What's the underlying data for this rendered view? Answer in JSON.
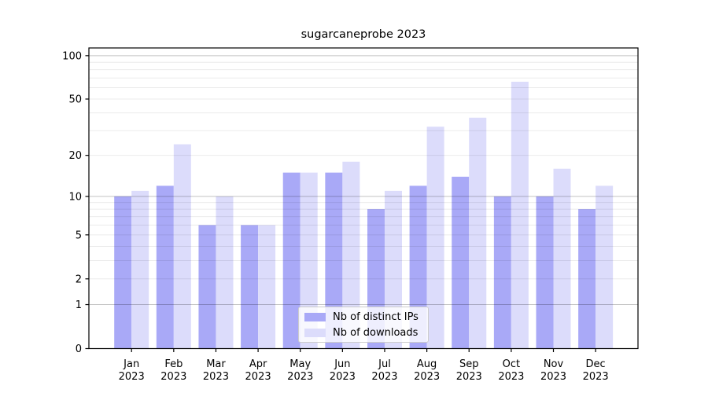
{
  "title": "sugarcaneprobe 2023",
  "colors": {
    "ips": "#a9a9f7",
    "downloads": "#dcdcfb",
    "grid_minor": "rgba(0,0,0,0.08)",
    "grid_major": "rgba(0,0,0,0.24)",
    "spine": "#000000",
    "legend_border": "#cccccc",
    "text": "#000000"
  },
  "legend": {
    "items": [
      {
        "label": "Nb of distinct IPs",
        "series": "ips"
      },
      {
        "label": "Nb of downloads",
        "series": "downloads"
      }
    ]
  },
  "chart_data": {
    "type": "bar",
    "title": "sugarcaneprobe 2023",
    "categories": [
      "Jan 2023",
      "Feb 2023",
      "Mar 2023",
      "Apr 2023",
      "May 2023",
      "Jun 2023",
      "Jul 2023",
      "Aug 2023",
      "Sep 2023",
      "Oct 2023",
      "Nov 2023",
      "Dec 2023"
    ],
    "month_labels": [
      "Jan",
      "Feb",
      "Mar",
      "Apr",
      "May",
      "Jun",
      "Jul",
      "Aug",
      "Sep",
      "Oct",
      "Nov",
      "Dec"
    ],
    "year_label": "2023",
    "series": [
      {
        "name": "Nb of distinct IPs",
        "key": "ips",
        "values": [
          10,
          12,
          6,
          6,
          15,
          15,
          8,
          12,
          14,
          10,
          10,
          8
        ]
      },
      {
        "name": "Nb of downloads",
        "key": "downloads",
        "values": [
          11,
          24,
          10,
          6,
          15,
          18,
          11,
          32,
          37,
          66,
          16,
          12
        ]
      }
    ],
    "xlabel": "",
    "ylabel": "",
    "yscale": "log1p",
    "ylim": [
      0,
      112
    ],
    "ytick_values": [
      100,
      50,
      20,
      10,
      5,
      2,
      1,
      0
    ],
    "ytick_labels": [
      "100",
      "50",
      "20",
      "10",
      "5",
      "2",
      "1",
      "0"
    ],
    "major_gridlines": [
      1,
      10,
      100
    ],
    "minor_gridlines": [
      2,
      3,
      4,
      5,
      6,
      7,
      8,
      9,
      20,
      30,
      40,
      50,
      60,
      70,
      80,
      90
    ],
    "grid": "on",
    "legend_position": "lower center"
  }
}
